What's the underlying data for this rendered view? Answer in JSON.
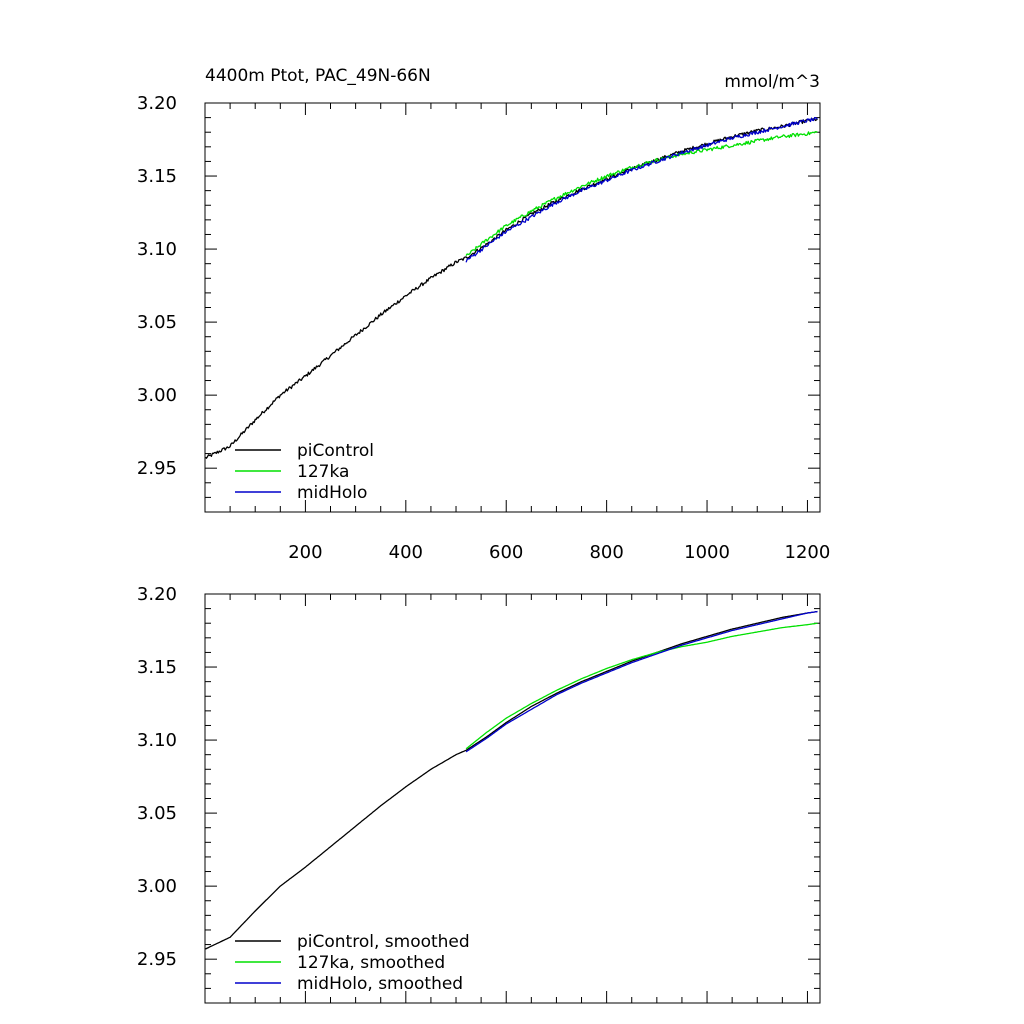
{
  "chart_data": [
    {
      "type": "line",
      "title_left": "4400m Ptot, PAC_49N-66N",
      "title_right": "mmol/m^3",
      "xlim": [
        0,
        1225
      ],
      "ylim": [
        2.92,
        3.2
      ],
      "x_ticks": [
        200,
        400,
        600,
        800,
        1000,
        1200
      ],
      "x_tick_labels": [
        "200",
        "400",
        "600",
        "800",
        "1000",
        "1200"
      ],
      "y_ticks": [
        2.95,
        3.0,
        3.05,
        3.1,
        3.15,
        3.2
      ],
      "y_tick_labels": [
        "2.95",
        "3.00",
        "3.05",
        "3.10",
        "3.15",
        "3.20"
      ],
      "legend_position": "bottom-left",
      "series": [
        {
          "name": "piControl",
          "color": "#000000",
          "noise": 0.0012,
          "x": [
            1,
            50,
            100,
            150,
            200,
            250,
            300,
            350,
            400,
            450,
            500,
            520,
            560,
            600,
            650,
            700,
            750,
            800,
            850,
            900,
            950,
            1000,
            1050,
            1100,
            1150,
            1200,
            1220
          ],
          "y": [
            2.957,
            2.965,
            2.983,
            3.0,
            3.013,
            3.027,
            3.041,
            3.055,
            3.068,
            3.08,
            3.091,
            3.094,
            3.103,
            3.113,
            3.124,
            3.133,
            3.141,
            3.148,
            3.155,
            3.161,
            3.167,
            3.172,
            3.177,
            3.181,
            3.184,
            3.188,
            3.189
          ]
        },
        {
          "name": "127ka",
          "color": "#00e000",
          "noise": 0.0012,
          "x": [
            520,
            560,
            600,
            650,
            700,
            750,
            800,
            850,
            900,
            950,
            1000,
            1050,
            1100,
            1150,
            1200,
            1220
          ],
          "y": [
            3.095,
            3.106,
            3.116,
            3.126,
            3.135,
            3.143,
            3.15,
            3.156,
            3.161,
            3.165,
            3.168,
            3.171,
            3.174,
            3.177,
            3.179,
            3.18
          ]
        },
        {
          "name": "midHolo",
          "color": "#0000cc",
          "noise": 0.0012,
          "x": [
            520,
            560,
            600,
            650,
            700,
            750,
            800,
            850,
            900,
            950,
            1000,
            1050,
            1100,
            1150,
            1200,
            1220
          ],
          "y": [
            3.092,
            3.102,
            3.112,
            3.122,
            3.132,
            3.14,
            3.147,
            3.154,
            3.16,
            3.166,
            3.171,
            3.176,
            3.18,
            3.184,
            3.188,
            3.189
          ]
        }
      ]
    },
    {
      "type": "line",
      "xlim": [
        0,
        1225
      ],
      "ylim": [
        2.92,
        3.2
      ],
      "x_ticks": [
        200,
        400,
        600,
        800,
        1000,
        1200
      ],
      "y_ticks": [
        2.95,
        3.0,
        3.05,
        3.1,
        3.15,
        3.2
      ],
      "y_tick_labels": [
        "2.95",
        "3.00",
        "3.05",
        "3.10",
        "3.15",
        "3.20"
      ],
      "legend_position": "bottom-left",
      "series": [
        {
          "name": "piControl, smoothed",
          "color": "#000000",
          "noise": 0,
          "x": [
            1,
            50,
            100,
            150,
            200,
            250,
            300,
            350,
            400,
            450,
            500,
            520,
            560,
            600,
            650,
            700,
            750,
            800,
            850,
            900,
            950,
            1000,
            1050,
            1100,
            1150,
            1200,
            1220
          ],
          "y": [
            2.957,
            2.965,
            2.983,
            3.0,
            3.013,
            3.027,
            3.041,
            3.055,
            3.068,
            3.08,
            3.09,
            3.093,
            3.102,
            3.112,
            3.123,
            3.132,
            3.14,
            3.147,
            3.154,
            3.16,
            3.166,
            3.171,
            3.176,
            3.18,
            3.184,
            3.187,
            3.188
          ]
        },
        {
          "name": "127ka, smoothed",
          "color": "#00e000",
          "noise": 0,
          "x": [
            520,
            560,
            600,
            650,
            700,
            750,
            800,
            850,
            900,
            950,
            1000,
            1050,
            1100,
            1150,
            1200,
            1220
          ],
          "y": [
            3.094,
            3.105,
            3.115,
            3.125,
            3.134,
            3.142,
            3.149,
            3.155,
            3.16,
            3.164,
            3.167,
            3.171,
            3.174,
            3.177,
            3.179,
            3.18
          ]
        },
        {
          "name": "midHolo, smoothed",
          "color": "#0000cc",
          "noise": 0,
          "x": [
            520,
            560,
            600,
            650,
            700,
            750,
            800,
            850,
            900,
            950,
            1000,
            1050,
            1100,
            1150,
            1200,
            1220
          ],
          "y": [
            3.092,
            3.101,
            3.111,
            3.121,
            3.131,
            3.139,
            3.146,
            3.153,
            3.159,
            3.165,
            3.17,
            3.175,
            3.179,
            3.183,
            3.187,
            3.188
          ]
        }
      ]
    }
  ]
}
